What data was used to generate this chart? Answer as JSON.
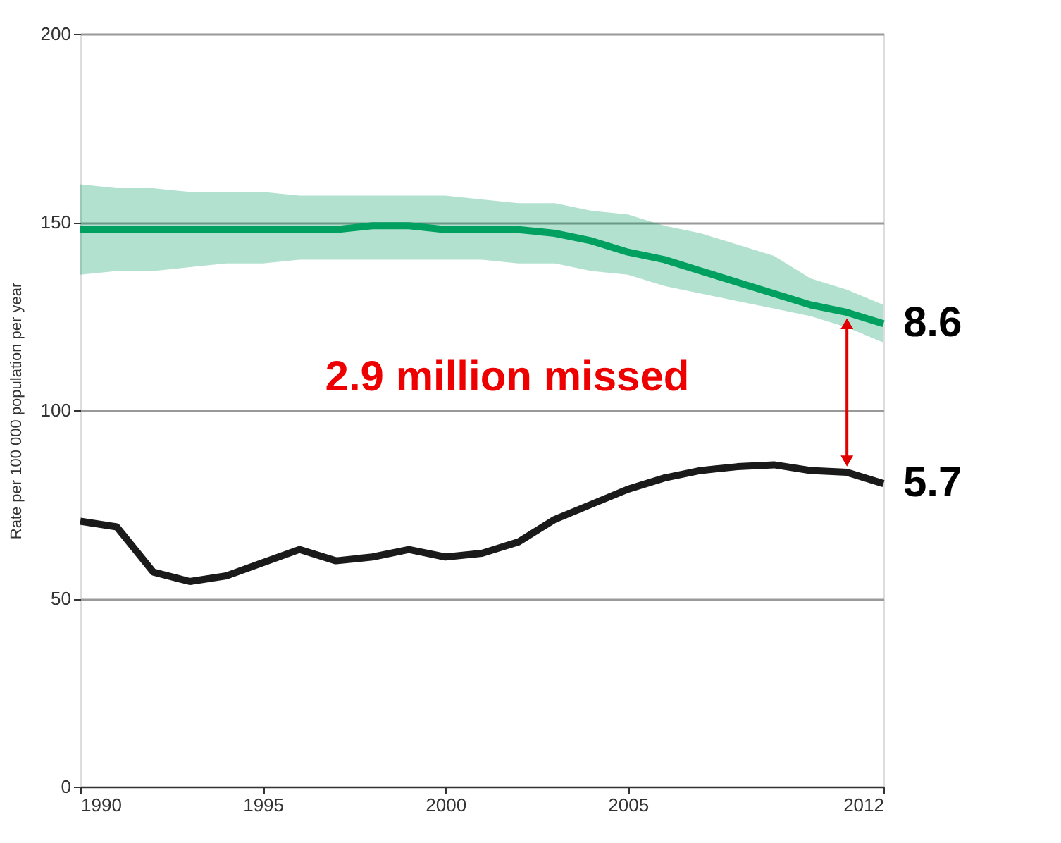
{
  "chart_data": {
    "type": "line",
    "ylabel": "Rate per 100 000 population per year",
    "x": [
      1990,
      1991,
      1992,
      1993,
      1994,
      1995,
      1996,
      1997,
      1998,
      1999,
      2000,
      2001,
      2002,
      2003,
      2004,
      2005,
      2006,
      2007,
      2008,
      2009,
      2010,
      2011,
      2012
    ],
    "series": [
      {
        "color": "#00a060",
        "values": [
          148,
          148,
          148,
          148,
          148,
          148,
          148,
          148,
          149,
          149,
          148,
          148,
          148,
          147,
          145,
          142,
          140,
          137,
          134,
          131,
          128,
          126,
          123
        ],
        "lower": [
          136,
          137,
          137,
          138,
          139,
          139,
          140,
          140,
          140,
          140,
          140,
          140,
          139,
          139,
          137,
          136,
          133,
          131,
          129,
          127,
          125,
          122,
          118
        ],
        "upper": [
          160,
          159,
          159,
          158,
          158,
          158,
          157,
          157,
          157,
          157,
          157,
          156,
          155,
          155,
          153,
          152,
          149,
          147,
          144,
          141,
          135,
          132,
          128
        ]
      },
      {
        "color": "#1a1a1a",
        "values": [
          70.5,
          69,
          57,
          54.5,
          56,
          59.5,
          63,
          60,
          61,
          63,
          61,
          62,
          65,
          71,
          75,
          79,
          82,
          84,
          85,
          85.5,
          84,
          83.5,
          80.5
        ]
      }
    ],
    "xlim": [
      1990,
      2012
    ],
    "xticks": [
      1990,
      1995,
      2000,
      2005,
      2012
    ],
    "ylim": [
      0,
      200
    ],
    "yticks": [
      0,
      50,
      100,
      150,
      200
    ],
    "grid": "y",
    "line_style": "solid",
    "marker": "none",
    "annotations": [
      "2.9 million missed",
      {
        "text": "8.6",
        "x": 2012,
        "y": 123
      },
      {
        "text": "5.7",
        "x": 2012,
        "y": 80.5
      }
    ]
  }
}
